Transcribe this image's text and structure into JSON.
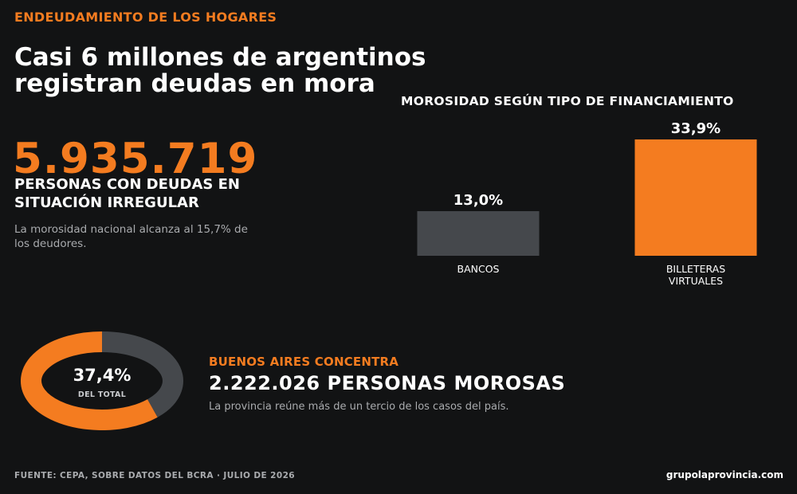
{
  "header": {
    "kicker": "ENDEUDAMIENTO DE LOS HOGARES",
    "headline": "Casi 6 millones de argentinos registran deudas en mora"
  },
  "highlight": {
    "number": "5.935.719",
    "label": "PERSONAS CON DEUDAS EN SITUACIÓN IRREGULAR",
    "note": "La morosidad nacional alcanza al 15,7% de los deudores."
  },
  "chart_data": [
    {
      "type": "bar",
      "title": "MOROSIDAD SEGÚN TIPO DE FINANCIAMIENTO",
      "categories": [
        "BANCOS",
        "BILLETERAS VIRTUALES"
      ],
      "values": [
        13.0,
        33.9
      ],
      "value_labels": [
        "13,0%",
        "33,9%"
      ],
      "colors": [
        "#45484c",
        "#f47c20"
      ],
      "ylim": [
        0,
        33.9
      ],
      "grid": false,
      "xlabel": "",
      "ylabel": ""
    },
    {
      "type": "pie",
      "style": "donut",
      "slices": [
        {
          "value": 37.4
        },
        {
          "value": 62.6
        }
      ],
      "colors": [
        "#45484c",
        "#f47c20"
      ],
      "center_label": "37,4%",
      "center_sublabel": "DEL TOTAL"
    }
  ],
  "buenos_aires": {
    "kicker": "BUENOS AIRES CONCENTRA",
    "stat": "2.222.026 PERSONAS MOROSAS",
    "note": "La provincia reúne más de un tercio de los casos del país."
  },
  "footer": {
    "source": "FUENTE: CEPA, SOBRE DATOS DEL BCRA · JULIO DE 2026",
    "site": "grupolaprovincia.com"
  },
  "colors": {
    "background": "#121314",
    "accent": "#f47c20",
    "muted": "#45484c",
    "text": "#ffffff",
    "subtext": "#a9abae"
  }
}
